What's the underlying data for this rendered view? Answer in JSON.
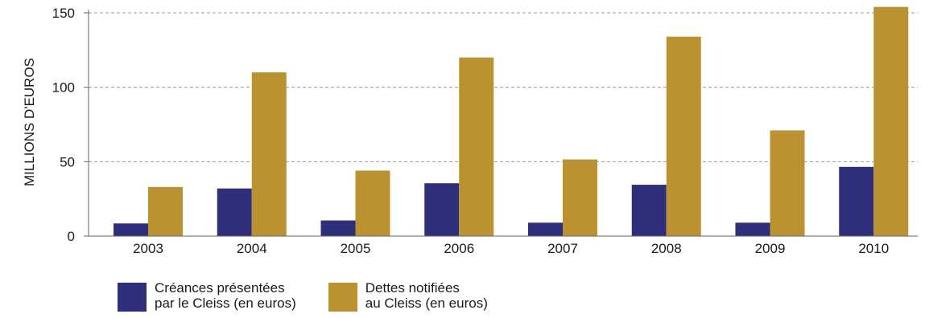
{
  "chart_data": {
    "type": "bar",
    "title": "",
    "xlabel": "",
    "ylabel": "MILLIONS D'EUROS",
    "ylim": [
      0,
      150
    ],
    "yticks": [
      0,
      50,
      100,
      150
    ],
    "grid": true,
    "legend_position": "bottom-left",
    "categories": [
      "2003",
      "2004",
      "2005",
      "2006",
      "2007",
      "2008",
      "2009",
      "2010"
    ],
    "series": [
      {
        "name": "Créances présentées\npar le Cleiss (en euros)",
        "color": "#2e2e7a",
        "values": [
          8.5,
          32,
          10.5,
          35.5,
          9,
          34.5,
          9,
          46.5
        ]
      },
      {
        "name": "Dettes notifiées\nau Cleiss (en euros)",
        "color": "#bb9232",
        "values": [
          33,
          110,
          44,
          120,
          51.5,
          134,
          71,
          154
        ]
      }
    ]
  }
}
